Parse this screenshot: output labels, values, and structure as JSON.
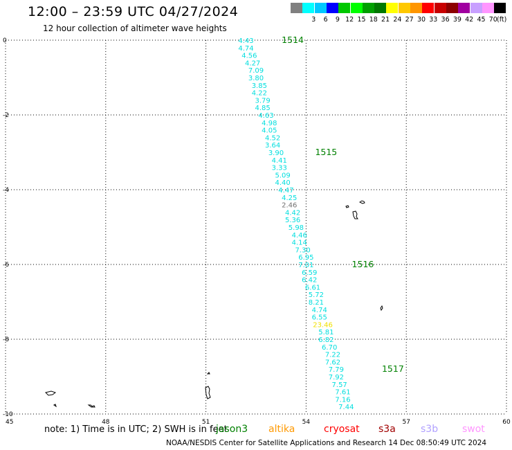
{
  "header": {
    "title": "12:00 – 23:59 UTC 04/27/2024",
    "subtitle": "12 hour collection of altimeter wave heights"
  },
  "legend": {
    "items": [
      {
        "label": "",
        "color": "#808080"
      },
      {
        "label": "3",
        "color": "#00ffff"
      },
      {
        "label": "6",
        "color": "#00c8ff"
      },
      {
        "label": "9",
        "color": "#0000ff"
      },
      {
        "label": "12",
        "color": "#00c800"
      },
      {
        "label": "15",
        "color": "#00ff00"
      },
      {
        "label": "18",
        "color": "#00a000"
      },
      {
        "label": "21",
        "color": "#007800"
      },
      {
        "label": "24",
        "color": "#ffff00"
      },
      {
        "label": "27",
        "color": "#ffc800"
      },
      {
        "label": "30",
        "color": "#ff9600"
      },
      {
        "label": "33",
        "color": "#ff0000"
      },
      {
        "label": "36",
        "color": "#c80000"
      },
      {
        "label": "39",
        "color": "#8c0000"
      },
      {
        "label": "42",
        "color": "#a000a0"
      },
      {
        "label": "45",
        "color": "#c8a0ff"
      },
      {
        "label": "70",
        "color": "#ff96ff"
      },
      {
        "label": "",
        "color": "#000000"
      }
    ],
    "unit": "(ft)"
  },
  "map": {
    "lon_range": [
      45,
      60
    ],
    "lat_range": [
      -10,
      0
    ],
    "lon_ticks": [
      "45",
      "48",
      "51",
      "54",
      "57",
      "60"
    ],
    "lat_ticks": [
      "0",
      "-2",
      "-4",
      "-6",
      "-8",
      "-10"
    ],
    "track_color": "#00dede",
    "pass_label_color": "#008000",
    "track": [
      {
        "lon": 52.2,
        "lat": 0.0,
        "swh": "4.43"
      },
      {
        "lon": 52.2,
        "lat": -0.2,
        "swh": "4.74"
      },
      {
        "lon": 52.3,
        "lat": -0.4,
        "swh": "4.56"
      },
      {
        "lon": 52.4,
        "lat": -0.6,
        "swh": "4.27"
      },
      {
        "lon": 52.5,
        "lat": -0.8,
        "swh": "7.09"
      },
      {
        "lon": 52.5,
        "lat": -1.0,
        "swh": "3.80"
      },
      {
        "lon": 52.6,
        "lat": -1.2,
        "swh": "3.85"
      },
      {
        "lon": 52.6,
        "lat": -1.4,
        "swh": "4.22"
      },
      {
        "lon": 52.7,
        "lat": -1.6,
        "swh": "3.79"
      },
      {
        "lon": 52.7,
        "lat": -1.8,
        "swh": "4.85"
      },
      {
        "lon": 52.8,
        "lat": -2.0,
        "swh": "4.63"
      },
      {
        "lon": 52.9,
        "lat": -2.2,
        "swh": "4.98"
      },
      {
        "lon": 52.9,
        "lat": -2.4,
        "swh": "4.05"
      },
      {
        "lon": 53.0,
        "lat": -2.6,
        "swh": "4.52"
      },
      {
        "lon": 53.0,
        "lat": -2.8,
        "swh": "3.64"
      },
      {
        "lon": 53.1,
        "lat": -3.0,
        "swh": "3.90"
      },
      {
        "lon": 53.2,
        "lat": -3.2,
        "swh": "4.41"
      },
      {
        "lon": 53.2,
        "lat": -3.4,
        "swh": "3.33"
      },
      {
        "lon": 53.3,
        "lat": -3.6,
        "swh": "5.09"
      },
      {
        "lon": 53.3,
        "lat": -3.8,
        "swh": "4.40"
      },
      {
        "lon": 53.4,
        "lat": -4.0,
        "swh": "4.47"
      },
      {
        "lon": 53.5,
        "lat": -4.2,
        "swh": "4.25"
      },
      {
        "lon": 53.5,
        "lat": -4.4,
        "swh": "2.46",
        "color": "#707070"
      },
      {
        "lon": 53.6,
        "lat": -4.6,
        "swh": "4.42"
      },
      {
        "lon": 53.6,
        "lat": -4.8,
        "swh": "5.36"
      },
      {
        "lon": 53.7,
        "lat": -5.0,
        "swh": "5.98"
      },
      {
        "lon": 53.8,
        "lat": -5.2,
        "swh": "4.46"
      },
      {
        "lon": 53.8,
        "lat": -5.4,
        "swh": "4.14"
      },
      {
        "lon": 53.9,
        "lat": -5.6,
        "swh": "7.30"
      },
      {
        "lon": 54.0,
        "lat": -5.8,
        "swh": "6.95"
      },
      {
        "lon": 54.0,
        "lat": -6.0,
        "swh": "7.01"
      },
      {
        "lon": 54.1,
        "lat": -6.2,
        "swh": "6.59"
      },
      {
        "lon": 54.1,
        "lat": -6.4,
        "swh": "6.42"
      },
      {
        "lon": 54.2,
        "lat": -6.6,
        "swh": "6.61"
      },
      {
        "lon": 54.3,
        "lat": -6.8,
        "swh": "5.72"
      },
      {
        "lon": 54.3,
        "lat": -7.0,
        "swh": "8.21"
      },
      {
        "lon": 54.4,
        "lat": -7.2,
        "swh": "4.74"
      },
      {
        "lon": 54.4,
        "lat": -7.4,
        "swh": "6.55"
      },
      {
        "lon": 54.5,
        "lat": -7.6,
        "swh": "23.46",
        "color": "#f0e000"
      },
      {
        "lon": 54.6,
        "lat": -7.8,
        "swh": "5.81"
      },
      {
        "lon": 54.6,
        "lat": -8.0,
        "swh": "6.82"
      },
      {
        "lon": 54.7,
        "lat": -8.2,
        "swh": "6.70"
      },
      {
        "lon": 54.8,
        "lat": -8.4,
        "swh": "7.22"
      },
      {
        "lon": 54.8,
        "lat": -8.6,
        "swh": "7.62"
      },
      {
        "lon": 54.9,
        "lat": -8.8,
        "swh": "7.79"
      },
      {
        "lon": 54.9,
        "lat": -9.0,
        "swh": "7.92"
      },
      {
        "lon": 55.0,
        "lat": -9.2,
        "swh": "7.57"
      },
      {
        "lon": 55.1,
        "lat": -9.4,
        "swh": "7.61"
      },
      {
        "lon": 55.1,
        "lat": -9.6,
        "swh": "7.16"
      },
      {
        "lon": 55.2,
        "lat": -9.8,
        "swh": "7.44"
      }
    ],
    "pass_labels": [
      {
        "lon": 53.6,
        "lat": 0.0,
        "text": "1514"
      },
      {
        "lon": 54.6,
        "lat": -3.0,
        "text": "1515"
      },
      {
        "lon": 55.7,
        "lat": -6.0,
        "text": "1516"
      },
      {
        "lon": 56.6,
        "lat": -8.8,
        "text": "1517"
      }
    ]
  },
  "footer": {
    "note": "note:  1) Time is in UTC;  2) SWH is in feet",
    "missions": [
      {
        "name": "jason3",
        "color": "#008000"
      },
      {
        "name": "altika",
        "color": "#ff9900"
      },
      {
        "name": "cryosat",
        "color": "#ff0000"
      },
      {
        "name": "s3a",
        "color": "#a00000"
      },
      {
        "name": "s3b",
        "color": "#b0a0ff"
      },
      {
        "name": "swot",
        "color": "#ff96ff"
      }
    ],
    "credit": "NOAA/NESDIS Center for Satellite Applications and Research     14 Dec 08:50:49 UTC 2024"
  }
}
